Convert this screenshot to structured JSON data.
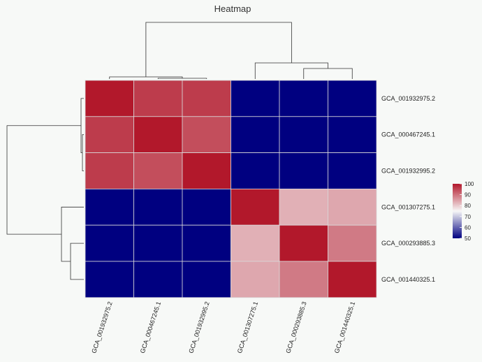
{
  "chart_data": {
    "type": "heatmap",
    "title": "Heatmap",
    "rows": [
      "GCA_001932975.2",
      "GCA_000467245.1",
      "GCA_001932995.2",
      "GCA_001307275.1",
      "GCA_000293885.3",
      "GCA_001440325.1"
    ],
    "columns": [
      "GCA_001932975.2",
      "GCA_000467245.1",
      "GCA_001932995.2",
      "GCA_001307275.1",
      "GCA_000293885.3",
      "GCA_001440325.1"
    ],
    "values": [
      [
        100,
        96,
        96,
        50,
        50,
        50
      ],
      [
        96,
        100,
        94,
        50,
        50,
        50
      ],
      [
        96,
        94,
        100,
        50,
        50,
        50
      ],
      [
        50,
        50,
        50,
        100,
        83,
        84
      ],
      [
        50,
        50,
        50,
        83,
        100,
        89
      ],
      [
        50,
        50,
        50,
        84,
        89,
        100
      ]
    ],
    "color_scale": {
      "min": 50,
      "max": 100,
      "low_color": "#000080",
      "mid_color": "#f7f7f7",
      "high_color": "#b2182b",
      "mid_value": 75,
      "legend_ticks": [
        100,
        90,
        80,
        70,
        60,
        50
      ],
      "legend_position": "right"
    },
    "row_dendrogram": true,
    "column_dendrogram": true
  }
}
